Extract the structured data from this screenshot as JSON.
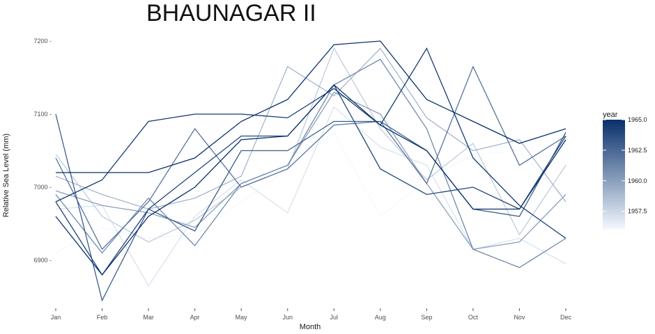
{
  "chart_data": {
    "type": "line",
    "title": "BHAUNAGAR II",
    "xlabel": "Month",
    "ylabel": "Relative Sea Level (mm)",
    "categories": [
      "Jan",
      "Feb",
      "Mar",
      "Apr",
      "May",
      "Jun",
      "Jul",
      "Aug",
      "Sep",
      "Oct",
      "Nov",
      "Dec"
    ],
    "ylim": [
      6840,
      7205
    ],
    "yticks": [
      6900,
      7000,
      7100,
      7200
    ],
    "ytick_labels": [
      "6900 -",
      "7000 -",
      "7100 -",
      "7200 -"
    ],
    "grid": false,
    "legend": {
      "title": "year",
      "position": "right",
      "range": [
        1956,
        1965
      ],
      "ticks": [
        1957.5,
        1960.0,
        1962.5,
        1965.0
      ],
      "tick_labels": [
        "1957.5",
        "1960.0",
        "1962.5",
        "1965.0"
      ],
      "color_low": "#f4f9fe",
      "color_high": "#08306b"
    },
    "series": [
      {
        "year": 1956,
        "values": [
          6910,
          6945,
          6930,
          6935,
          6980,
          7025,
          7075,
          6960,
          7010,
          7045,
          7050,
          6980
        ]
      },
      {
        "year": 1957,
        "values": [
          6970,
          6975,
          6865,
          6960,
          7010,
          6965,
          7110,
          7055,
          7030,
          6915,
          6930,
          6895
        ]
      },
      {
        "year": 1958,
        "values": [
          7045,
          6960,
          6925,
          6955,
          7000,
          7025,
          7190,
          7080,
          7010,
          7060,
          6935,
          7030
        ]
      },
      {
        "year": 1959,
        "values": [
          7015,
          6990,
          6970,
          6985,
          7015,
          7165,
          7125,
          7190,
          7095,
          7050,
          7065,
          6980
        ]
      },
      {
        "year": 1960,
        "values": [
          6995,
          6975,
          6965,
          6945,
          7005,
          7030,
          7130,
          7100,
          7005,
          6915,
          6925,
          6990
        ]
      },
      {
        "year": 1961,
        "values": [
          6990,
          6910,
          6985,
          6920,
          7005,
          7030,
          7140,
          7175,
          7080,
          6915,
          6890,
          6930
        ]
      },
      {
        "year": 1962,
        "values": [
          7040,
          6915,
          6980,
          7080,
          7000,
          7025,
          7085,
          7090,
          7005,
          7165,
          7030,
          7070
        ]
      },
      {
        "year": 1963,
        "values": [
          7100,
          6845,
          6970,
          6940,
          7050,
          7050,
          7090,
          7090,
          7050,
          6970,
          6960,
          7075
        ]
      },
      {
        "year": 1964,
        "values": [
          6980,
          6880,
          6970,
          7020,
          7070,
          7070,
          7140,
          7025,
          6990,
          7000,
          6970,
          7070
        ]
      },
      {
        "year": 1964.5,
        "values": [
          6980,
          7010,
          7090,
          7100,
          7100,
          7095,
          7135,
          7085,
          7190,
          7040,
          6975,
          6930
        ]
      },
      {
        "year": 1965,
        "values": [
          7020,
          7020,
          7020,
          7040,
          7090,
          7120,
          7195,
          7200,
          7120,
          7090,
          7060,
          7080
        ]
      },
      {
        "year": 1965,
        "values": [
          6960,
          6880,
          6960,
          7000,
          7065,
          7070,
          7140,
          7085,
          7050,
          6970,
          6970,
          7065
        ]
      }
    ]
  }
}
